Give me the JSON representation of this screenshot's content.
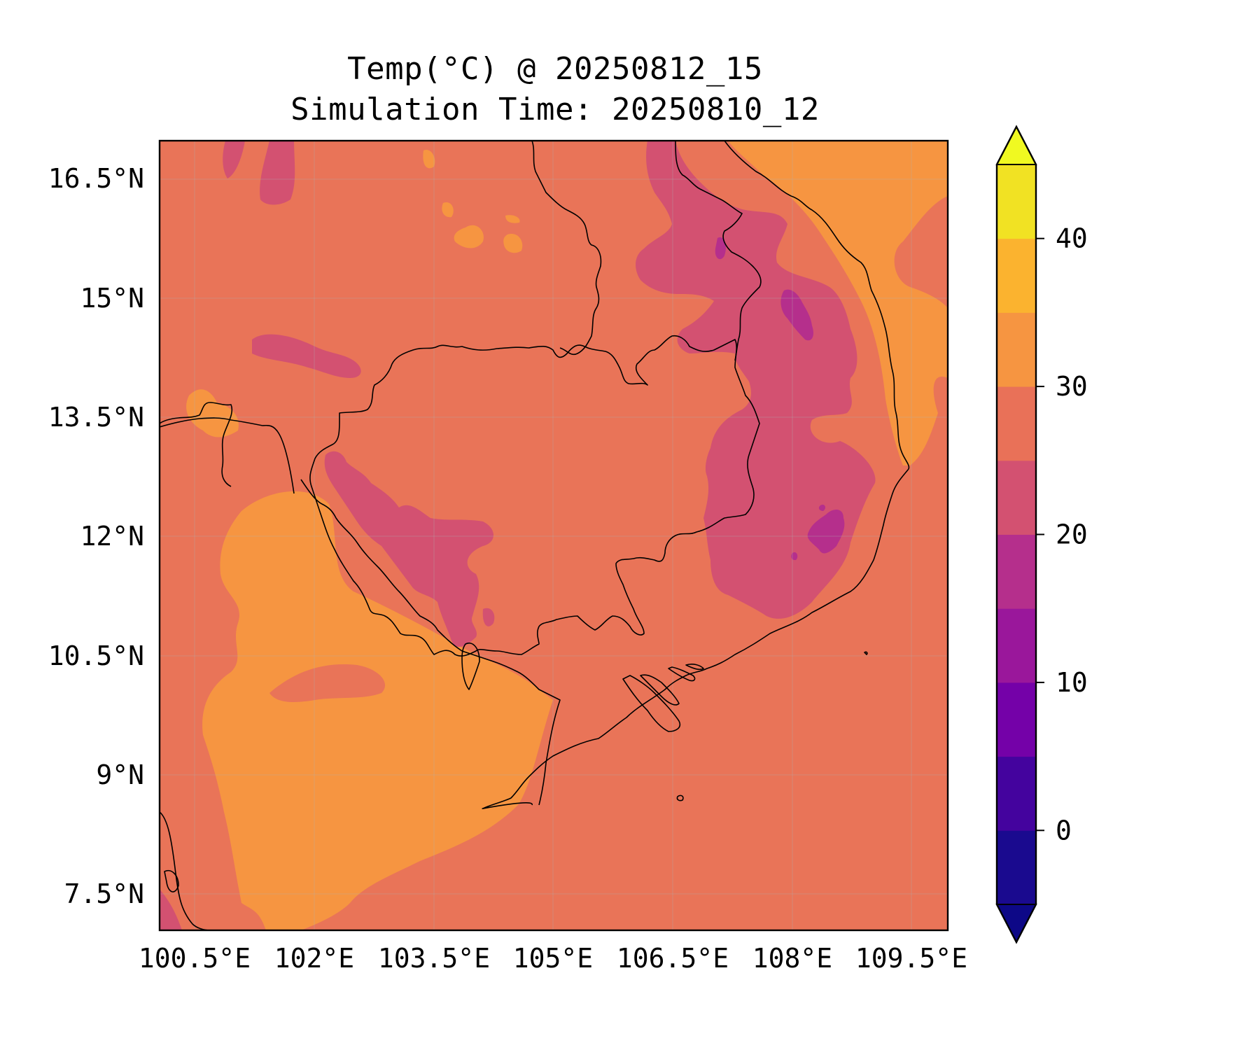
{
  "title": {
    "line1": "Temp(°C) @ 20250812_15",
    "line2": "Simulation Time: 20250810_12"
  },
  "map": {
    "lon_range": [
      100.2,
      110.0
    ],
    "lat_range": [
      7.0,
      16.8
    ],
    "lon_ticks": [
      "100.5°E",
      "102°E",
      "103.5°E",
      "105°E",
      "106.5°E",
      "108°E",
      "109.5°E"
    ],
    "lat_ticks": [
      "16.5°N",
      "15°N",
      "13.5°N",
      "12°N",
      "10.5°N",
      "9°N",
      "7.5°N"
    ],
    "gridlines": true
  },
  "colorbar": {
    "tick_labels": [
      "40",
      "30",
      "20",
      "10",
      "0"
    ],
    "levels": [
      -5,
      0,
      5,
      10,
      15,
      20,
      25,
      30,
      35,
      40,
      45
    ],
    "extend": "both",
    "colormap": "plasma",
    "colors": [
      "#0d0887",
      "#2a0593",
      "#4c02a1",
      "#7e03a8",
      "#a82296",
      "#c33d80",
      "#d5546e",
      "#e97158",
      "#f89540",
      "#fdb42f",
      "#f0f921"
    ],
    "segment_colors": [
      "#1a0a8f",
      "#44039e",
      "#7401a8",
      "#9a179b",
      "#b52f8c",
      "#d35171",
      "#e97158",
      "#f69541",
      "#fbb32f",
      "#f1e223"
    ]
  }
}
